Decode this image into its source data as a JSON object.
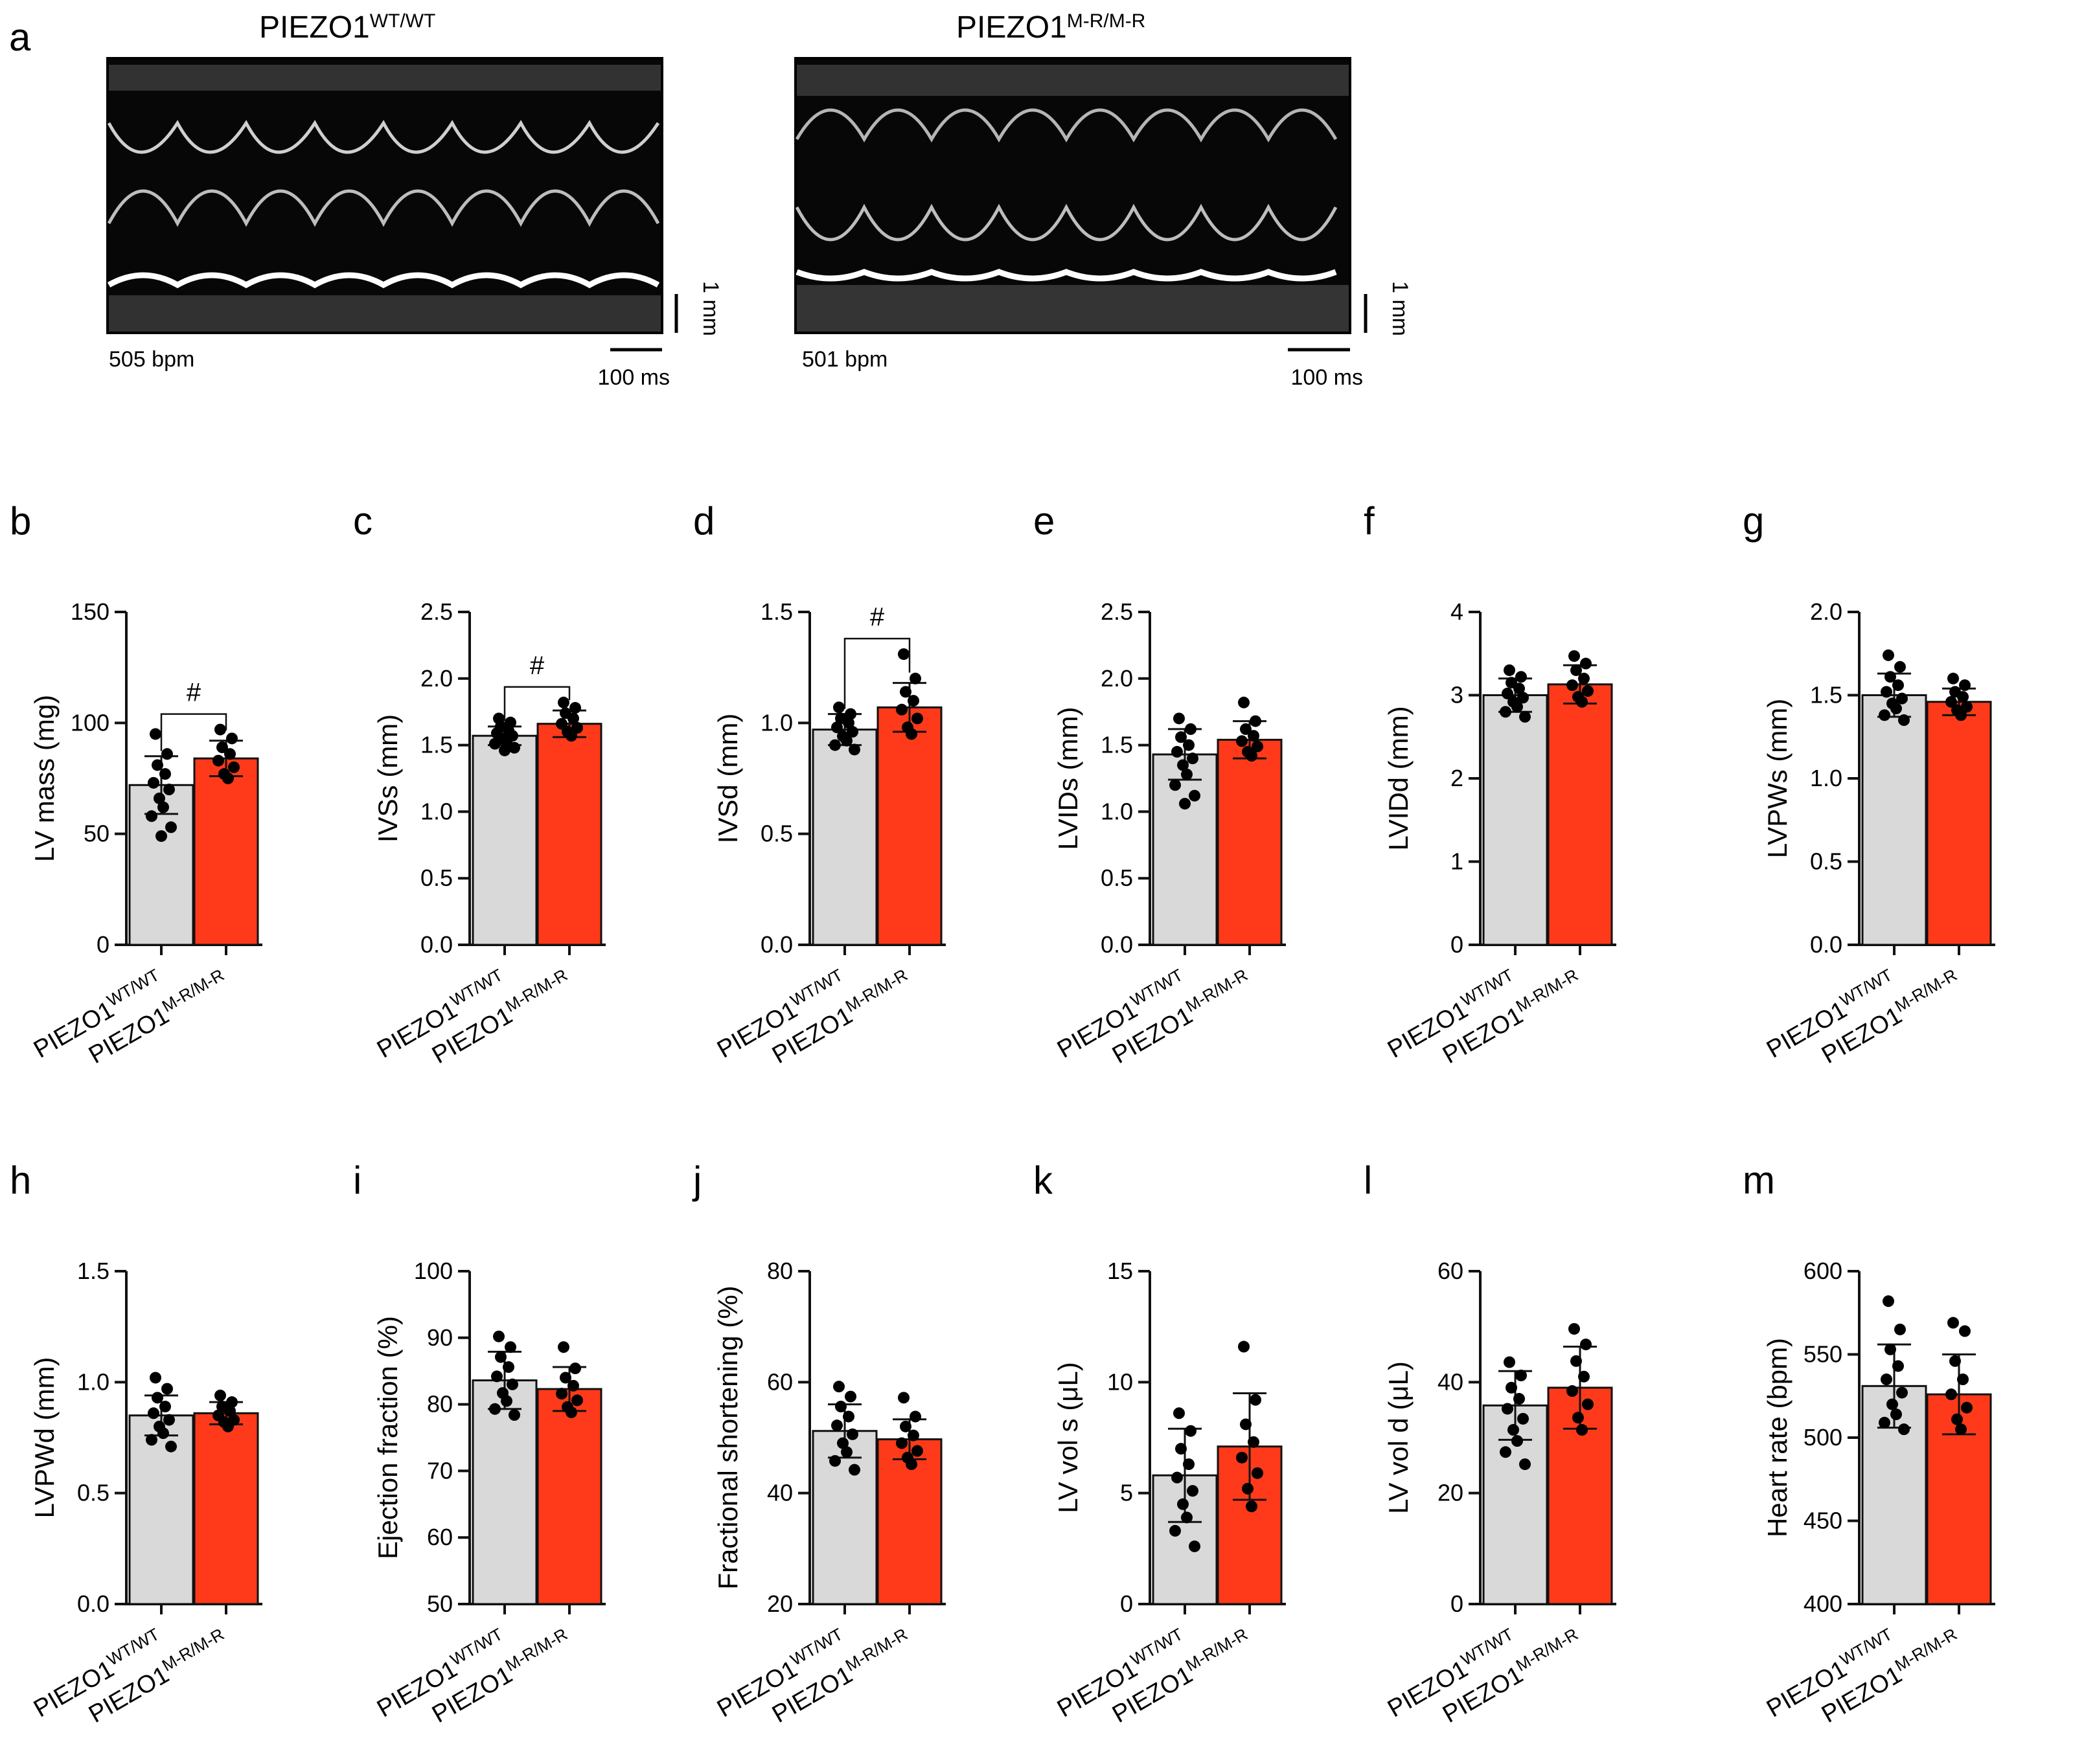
{
  "panel_a": {
    "letter": "a",
    "images": [
      {
        "title_main": "PIEZO1",
        "title_sup": "WT/WT",
        "bpm_label": "505 bpm",
        "scale_time": "100 ms",
        "scale_depth": "1 mm",
        "depicts": "m-mode-echocardiogram"
      },
      {
        "title_main": "PIEZO1",
        "title_sup": "M-R/M-R",
        "bpm_label": "501 bpm",
        "scale_time": "100 ms",
        "scale_depth": "1 mm",
        "depicts": "m-mode-echocardiogram"
      }
    ]
  },
  "groups": [
    {
      "main": "PIEZO1",
      "sup": "WT/WT"
    },
    {
      "main": "PIEZO1",
      "sup": "M-R/M-R"
    }
  ],
  "colors": {
    "wt": "#d9d9d9",
    "mr": "#ff3a1a",
    "axis": "#111111"
  },
  "chart_data": [
    {
      "letter": "b",
      "type": "bar",
      "ylabel": "LV mass (mg)",
      "ylim": [
        0,
        150
      ],
      "yticks": [
        0,
        50,
        100,
        150
      ],
      "tick_labels": [
        "0",
        "50",
        "100",
        "150"
      ],
      "means": [
        72,
        84
      ],
      "sd": [
        13,
        8
      ],
      "significance": "#",
      "points": [
        [
          95,
          86,
          81,
          77,
          73,
          70,
          66,
          62,
          58,
          53,
          49
        ],
        [
          97,
          93,
          89,
          86,
          83,
          80,
          77,
          75
        ]
      ]
    },
    {
      "letter": "c",
      "type": "bar",
      "ylabel": "IVSs (mm)",
      "ylim": [
        0,
        2.5
      ],
      "yticks": [
        0,
        0.5,
        1.0,
        1.5,
        2.0,
        2.5
      ],
      "tick_labels": [
        "0.0",
        "0.5",
        "1.0",
        "1.5",
        "2.0",
        "2.5"
      ],
      "means": [
        1.57,
        1.66
      ],
      "sd": [
        0.07,
        0.1
      ],
      "significance": "#",
      "points": [
        [
          1.7,
          1.67,
          1.64,
          1.61,
          1.59,
          1.57,
          1.55,
          1.53,
          1.51,
          1.48,
          1.46
        ],
        [
          1.82,
          1.78,
          1.74,
          1.7,
          1.66,
          1.63,
          1.6,
          1.57
        ]
      ]
    },
    {
      "letter": "d",
      "type": "bar",
      "ylabel": "IVSd (mm)",
      "ylim": [
        0,
        1.5
      ],
      "yticks": [
        0,
        0.5,
        1.0,
        1.5
      ],
      "tick_labels": [
        "0.0",
        "0.5",
        "1.0",
        "1.5"
      ],
      "means": [
        0.97,
        1.07
      ],
      "sd": [
        0.07,
        0.11
      ],
      "significance": "#",
      "points": [
        [
          1.07,
          1.04,
          1.02,
          1.0,
          0.98,
          0.96,
          0.94,
          0.92,
          0.9,
          0.88
        ],
        [
          1.31,
          1.2,
          1.14,
          1.1,
          1.06,
          1.02,
          0.98,
          0.95
        ]
      ]
    },
    {
      "letter": "e",
      "type": "bar",
      "ylabel": "LVIDs (mm)",
      "ylim": [
        0,
        2.5
      ],
      "yticks": [
        0,
        0.5,
        1.0,
        1.5,
        2.0,
        2.5
      ],
      "tick_labels": [
        "0.0",
        "0.5",
        "1.0",
        "1.5",
        "2.0",
        "2.5"
      ],
      "means": [
        1.43,
        1.54
      ],
      "sd": [
        0.19,
        0.14
      ],
      "significance": "",
      "points": [
        [
          1.7,
          1.62,
          1.56,
          1.5,
          1.45,
          1.4,
          1.35,
          1.28,
          1.2,
          1.12,
          1.06
        ],
        [
          1.82,
          1.68,
          1.62,
          1.57,
          1.53,
          1.49,
          1.45,
          1.42
        ]
      ]
    },
    {
      "letter": "f",
      "type": "bar",
      "ylabel": "LVIDd (mm)",
      "ylim": [
        0,
        4
      ],
      "yticks": [
        0,
        1,
        2,
        3,
        4
      ],
      "tick_labels": [
        "0",
        "1",
        "2",
        "3",
        "4"
      ],
      "means": [
        3.0,
        3.13
      ],
      "sd": [
        0.2,
        0.23
      ],
      "significance": "",
      "points": [
        [
          3.3,
          3.22,
          3.15,
          3.08,
          3.02,
          2.97,
          2.92,
          2.86,
          2.8,
          2.74
        ],
        [
          3.47,
          3.38,
          3.3,
          3.2,
          3.12,
          3.05,
          2.98,
          2.92
        ]
      ]
    },
    {
      "letter": "g",
      "type": "bar",
      "ylabel": "LVPWs (mm)",
      "ylim": [
        0,
        2.0
      ],
      "yticks": [
        0,
        0.5,
        1.0,
        1.5,
        2.0
      ],
      "tick_labels": [
        "0.0",
        "0.5",
        "1.0",
        "1.5",
        "2.0"
      ],
      "means": [
        1.5,
        1.46
      ],
      "sd": [
        0.13,
        0.08
      ],
      "significance": "",
      "points": [
        [
          1.74,
          1.67,
          1.61,
          1.56,
          1.52,
          1.48,
          1.45,
          1.42,
          1.38,
          1.35
        ],
        [
          1.6,
          1.56,
          1.52,
          1.49,
          1.46,
          1.43,
          1.41,
          1.38
        ]
      ]
    },
    {
      "letter": "h",
      "type": "bar",
      "ylabel": "LVPWd (mm)",
      "ylim": [
        0,
        1.5
      ],
      "yticks": [
        0,
        0.5,
        1.0,
        1.5
      ],
      "tick_labels": [
        "0.0",
        "0.5",
        "1.0",
        "1.5"
      ],
      "means": [
        0.85,
        0.86
      ],
      "sd": [
        0.09,
        0.05
      ],
      "significance": "",
      "points": [
        [
          1.02,
          0.97,
          0.93,
          0.89,
          0.86,
          0.83,
          0.8,
          0.77,
          0.74,
          0.71
        ],
        [
          0.94,
          0.91,
          0.89,
          0.87,
          0.85,
          0.83,
          0.82,
          0.8
        ]
      ]
    },
    {
      "letter": "i",
      "type": "bar",
      "ylabel": "Ejection fraction (%)",
      "ylim": [
        50,
        100
      ],
      "yticks": [
        50,
        60,
        70,
        80,
        90,
        100
      ],
      "tick_labels": [
        "50",
        "60",
        "70",
        "80",
        "90",
        "100"
      ],
      "means": [
        83.6,
        82.3
      ],
      "sd": [
        4.3,
        3.3
      ],
      "significance": "",
      "points": [
        [
          90.2,
          88.6,
          87.1,
          85.6,
          84.2,
          83,
          81.7,
          80.5,
          79.3,
          78.4
        ],
        [
          88.6,
          85.4,
          84,
          82.8,
          81.6,
          80.6,
          79.6,
          78.8
        ]
      ]
    },
    {
      "letter": "j",
      "type": "bar",
      "ylabel": "Fractional shortening (%)",
      "ylim": [
        20,
        80
      ],
      "yticks": [
        20,
        40,
        60,
        80
      ],
      "tick_labels": [
        "20",
        "40",
        "60",
        "80"
      ],
      "means": [
        51.2,
        49.7
      ],
      "sd": [
        4.8,
        3.6
      ],
      "significance": "",
      "points": [
        [
          59.2,
          57.4,
          55.6,
          53.8,
          52.2,
          50.6,
          49,
          47.4,
          45.8,
          44.2
        ],
        [
          57.2,
          53.8,
          52,
          50.4,
          49,
          47.6,
          46.4,
          45.2
        ]
      ]
    },
    {
      "letter": "k",
      "type": "bar",
      "ylabel": "LV vol s (μL)",
      "ylim": [
        0,
        15
      ],
      "yticks": [
        0,
        5,
        10,
        15
      ],
      "tick_labels": [
        "0",
        "5",
        "10",
        "15"
      ],
      "means": [
        5.8,
        7.1
      ],
      "sd": [
        2.1,
        2.4
      ],
      "significance": "",
      "points": [
        [
          8.6,
          7.8,
          7,
          6.3,
          5.7,
          5.1,
          4.5,
          3.9,
          3.3,
          2.6
        ],
        [
          11.6,
          9.2,
          8.1,
          7.3,
          6.6,
          5.9,
          5.2,
          4.4
        ]
      ]
    },
    {
      "letter": "l",
      "type": "bar",
      "ylabel": "LV vol d (μL)",
      "ylim": [
        0,
        60
      ],
      "yticks": [
        0,
        20,
        40,
        60
      ],
      "tick_labels": [
        "0",
        "20",
        "40",
        "60"
      ],
      "means": [
        35.8,
        39
      ],
      "sd": [
        6.2,
        7.4
      ],
      "significance": "",
      "points": [
        [
          43.6,
          41.2,
          39,
          37,
          35.2,
          33.4,
          31.4,
          29.4,
          27.4,
          25.2
        ],
        [
          49.6,
          46.8,
          43.8,
          41,
          38.4,
          36,
          33.6,
          31.4
        ]
      ]
    },
    {
      "letter": "m",
      "type": "bar",
      "ylabel": "Heart rate (bpm)",
      "ylim": [
        400,
        600
      ],
      "yticks": [
        400,
        450,
        500,
        550,
        600
      ],
      "tick_labels": [
        "400",
        "450",
        "500",
        "550",
        "600"
      ],
      "means": [
        531,
        526
      ],
      "sd": [
        25,
        24
      ],
      "significance": "",
      "points": [
        [
          582,
          565,
          553,
          543,
          535,
          527,
          520,
          514,
          509,
          505
        ],
        [
          569,
          564,
          546,
          535,
          526,
          518,
          511,
          505
        ]
      ]
    }
  ]
}
